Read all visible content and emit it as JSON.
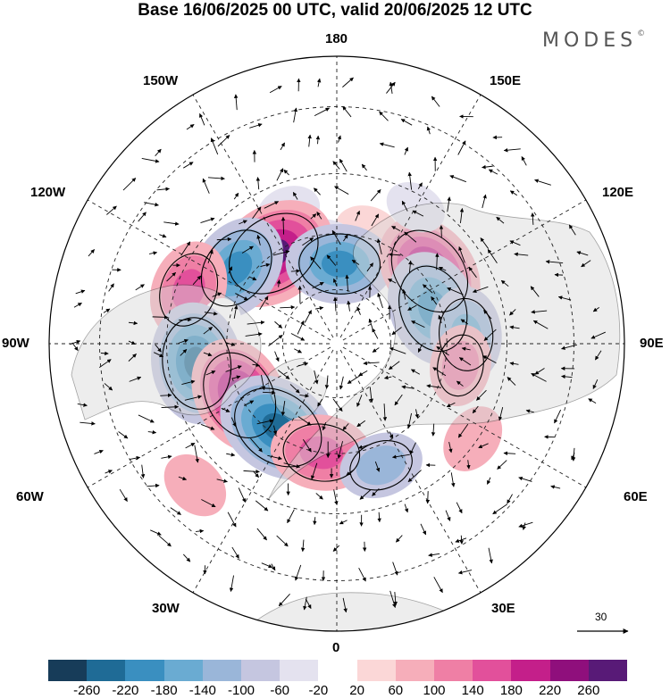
{
  "title": "Base 16/06/2025 00 UTC, valid 20/06/2025 12 UTC",
  "logo": "MODES",
  "logo_mark": "©",
  "longitude_labels": {
    "lon_180": "180",
    "lon_150W": "150W",
    "lon_150E": "150E",
    "lon_120W": "120W",
    "lon_120E": "120E",
    "lon_90W": "90W",
    "lon_90E": "90E",
    "lon_60W": "60W",
    "lon_60E": "60E",
    "lon_30W": "30W",
    "lon_30E": "30E",
    "lon_0": "0"
  },
  "reference_vector": {
    "label": "30"
  },
  "colorbar": {
    "colors": [
      "#173c59",
      "#1f6b96",
      "#3a8fc0",
      "#6aabd2",
      "#9ab6d9",
      "#c5c6e0",
      "#e4e2ef",
      "#ffffff",
      "#fbd7d7",
      "#f6aeba",
      "#ef7fa5",
      "#e2509b",
      "#c41f8a",
      "#8f0f7c",
      "#581a77"
    ],
    "tick_labels": [
      "-260",
      "-220",
      "-180",
      "-140",
      "-100",
      "-60",
      "-20",
      "20",
      "60",
      "100",
      "140",
      "180",
      "220",
      "260"
    ]
  },
  "anomaly_cells": [
    {
      "lon": 165,
      "lat": 58,
      "value": 40
    },
    {
      "lon": -172,
      "lat": 62,
      "value": -30
    },
    {
      "lon": -160,
      "lat": 52,
      "value": -40
    },
    {
      "lon": -145,
      "lat": 60,
      "value": 260
    },
    {
      "lon": -127,
      "lat": 56,
      "value": -200
    },
    {
      "lon": -110,
      "lat": 48,
      "value": 160
    },
    {
      "lon": -98,
      "lat": 58,
      "value": -20
    },
    {
      "lon": -82,
      "lat": 52,
      "value": -240
    },
    {
      "lon": -62,
      "lat": 60,
      "value": 230
    },
    {
      "lon": -35,
      "lat": 62,
      "value": -250
    },
    {
      "lon": -8,
      "lat": 60,
      "value": 170
    },
    {
      "lon": 20,
      "lat": 55,
      "value": -110
    },
    {
      "lon": 178,
      "lat": 68,
      "value": -190
    },
    {
      "lon": 128,
      "lat": 58,
      "value": 230
    },
    {
      "lon": 110,
      "lat": 62,
      "value": -220
    },
    {
      "lon": 94,
      "lat": 55,
      "value": -150
    },
    {
      "lon": 80,
      "lat": 56,
      "value": 100
    },
    {
      "lon": 55,
      "lat": 46,
      "value": 60
    },
    {
      "lon": 150,
      "lat": 48,
      "value": -30
    },
    {
      "lon": -45,
      "lat": 38,
      "value": 60
    }
  ]
}
